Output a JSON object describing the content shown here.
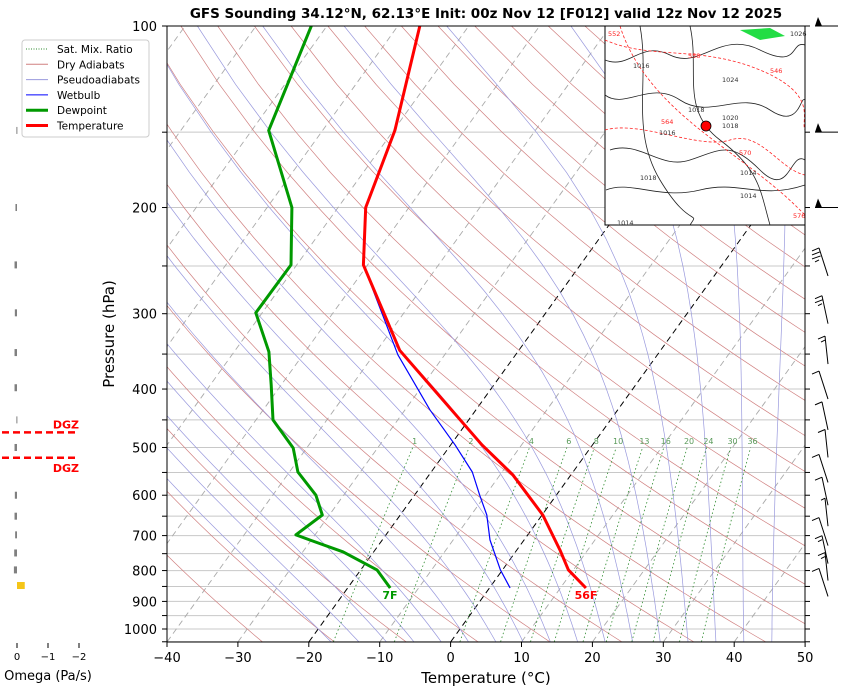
{
  "chart_data": {
    "type": "line",
    "title": "GFS Sounding 34.12°N, 62.13°E Init: 00z Nov 12 [F012] valid 12z Nov 12 2025",
    "xlabel": "Temperature (°C)",
    "ylabel": "Pressure (hPa)",
    "xlim": [
      -40,
      50
    ],
    "ylim": [
      1050,
      100
    ],
    "x_ticks": [
      -40,
      -30,
      -20,
      -10,
      0,
      10,
      20,
      30,
      40,
      50
    ],
    "y_ticks": [
      100,
      200,
      300,
      400,
      500,
      600,
      700,
      800,
      900,
      1000
    ],
    "y_scale": "log",
    "skew": "45 degrees",
    "legend": {
      "position": "top-left (outside, left of plot)",
      "entries": [
        {
          "label": "Sat. Mix. Ratio",
          "color": "#2e8b2e",
          "style": "dotted"
        },
        {
          "label": "Dry Adiabats",
          "color": "#d08080",
          "style": "solid"
        },
        {
          "label": "Pseudoadiabats",
          "color": "#9999dd",
          "style": "solid"
        },
        {
          "label": "Wetbulb",
          "color": "#0000ff",
          "style": "solid"
        },
        {
          "label": "Dewpoint",
          "color": "#009900",
          "style": "thick"
        },
        {
          "label": "Temperature",
          "color": "#ff0000",
          "style": "thick"
        }
      ]
    },
    "series": [
      {
        "name": "Temperature",
        "color": "#ff0000",
        "pressure": [
          855,
          798,
          740,
          647,
          555,
          495,
          345,
          249,
          200,
          149,
          100
        ],
        "temperature": [
          13.6,
          9.3,
          6.1,
          0.1,
          -8.2,
          -15.6,
          -36.8,
          -50.6,
          -56.1,
          -59.8,
          -66.9
        ]
      },
      {
        "name": "Dewpoint",
        "color": "#009900",
        "pressure": [
          855,
          798,
          745,
          712,
          698,
          647,
          600,
          549,
          501,
          450,
          394,
          347,
          299,
          249,
          200,
          149,
          100
        ],
        "temperature": [
          -14,
          -17.7,
          -24.3,
          -30.2,
          -32.7,
          -31,
          -33.9,
          -38.8,
          -41.9,
          -47.6,
          -51.4,
          -55.1,
          -60.9,
          -60.8,
          -66.5,
          -77.6,
          -82.2
        ]
      },
      {
        "name": "Wetbulb",
        "color": "#0000ff",
        "pressure": [
          855,
          798,
          712,
          647,
          600,
          549,
          495,
          433,
          351,
          249
        ],
        "temperature": [
          2.9,
          -0.3,
          -4.8,
          -7.8,
          -10.8,
          -14.2,
          -19.4,
          -26.5,
          -36.6,
          -50.6
        ]
      }
    ],
    "surface_labels": {
      "temperature": "56F",
      "dewpoint": "7F"
    },
    "mixing_ratio_labels": [
      "1",
      "2",
      "4",
      "6",
      "8",
      "10",
      "13",
      "16",
      "20",
      "24",
      "30",
      "36"
    ],
    "mixing_ratio_values": [
      1,
      2,
      4,
      6,
      8,
      10,
      13,
      16,
      20,
      24,
      30,
      36
    ],
    "highlight_isotherms": [
      0,
      -20
    ],
    "omega_panel": {
      "xlabel": "Omega (Pa/s)",
      "x_ticks": [
        "0",
        "−1",
        "−2"
      ],
      "pressure": [
        149,
        200,
        249,
        299,
        348,
        398,
        450,
        500,
        600,
        650,
        698,
        748,
        798,
        847
      ],
      "omega": [
        0.02,
        0.05,
        0.08,
        0.07,
        0.08,
        0.08,
        0.02,
        0.08,
        0.07,
        0.08,
        0.06,
        0.09,
        0.1,
        -0.25
      ],
      "dgz_label": "DGZ",
      "dgz_pressures": [
        472,
        520
      ]
    },
    "wind_barbs": {
      "pressure": [
        100,
        150,
        200,
        250,
        300,
        350,
        400,
        450,
        500,
        550,
        600,
        650,
        700,
        750,
        800,
        850
      ],
      "speed_kt": [
        60,
        55,
        50,
        35,
        25,
        15,
        10,
        10,
        10,
        10,
        10,
        5,
        10,
        15,
        15,
        10
      ]
    },
    "inset_map": {
      "labels": [
        "552",
        "1026",
        "558",
        "1016",
        "546",
        "1024",
        "1018",
        "564",
        "1020",
        "1016",
        "1018",
        "1014",
        "570",
        "1018",
        "1014",
        "576",
        "1014"
      ]
    }
  }
}
